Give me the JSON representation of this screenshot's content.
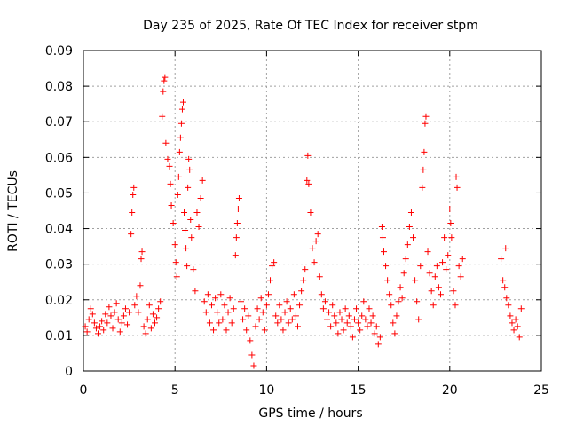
{
  "chart_data": {
    "type": "scatter",
    "title": "Day 235 of 2025, Rate Of TEC Index for receiver stpm",
    "xlabel": "GPS time / hours",
    "ylabel": "ROTI / TECUs",
    "xlim": [
      0,
      25
    ],
    "ylim": [
      0,
      0.09
    ],
    "x_ticks": [
      "0",
      "5",
      "10",
      "15",
      "20",
      "25"
    ],
    "y_ticks": [
      "0",
      "0.01",
      "0.02",
      "0.03",
      "0.04",
      "0.05",
      "0.06",
      "0.07",
      "0.08",
      "0.09"
    ],
    "grid": true,
    "marker": "plus",
    "colors": {
      "series": "#ff0000",
      "grid": "#a0a0a0"
    },
    "series": [
      {
        "points": [
          [
            0.1,
            0.0125
          ],
          [
            0.2,
            0.011
          ],
          [
            0.3,
            0.0145
          ],
          [
            0.4,
            0.0175
          ],
          [
            0.5,
            0.016
          ],
          [
            0.6,
            0.0135
          ],
          [
            0.7,
            0.012
          ],
          [
            0.8,
            0.0105
          ],
          [
            0.9,
            0.0125
          ],
          [
            1.0,
            0.014
          ],
          [
            1.1,
            0.0115
          ],
          [
            1.2,
            0.016
          ],
          [
            1.3,
            0.0135
          ],
          [
            1.4,
            0.018
          ],
          [
            1.5,
            0.0155
          ],
          [
            1.6,
            0.012
          ],
          [
            1.7,
            0.0165
          ],
          [
            1.8,
            0.019
          ],
          [
            1.9,
            0.0145
          ],
          [
            2.0,
            0.011
          ],
          [
            2.1,
            0.0135
          ],
          [
            2.2,
            0.0155
          ],
          [
            2.3,
            0.0175
          ],
          [
            2.4,
            0.013
          ],
          [
            2.5,
            0.0165
          ],
          [
            2.6,
            0.0385
          ],
          [
            2.65,
            0.0445
          ],
          [
            2.7,
            0.0495
          ],
          [
            2.75,
            0.0515
          ],
          [
            2.8,
            0.0185
          ],
          [
            2.9,
            0.021
          ],
          [
            3.0,
            0.0165
          ],
          [
            3.1,
            0.024
          ],
          [
            3.15,
            0.0315
          ],
          [
            3.2,
            0.0335
          ],
          [
            3.3,
            0.0125
          ],
          [
            3.4,
            0.0105
          ],
          [
            3.5,
            0.0145
          ],
          [
            3.6,
            0.0185
          ],
          [
            3.7,
            0.012
          ],
          [
            3.8,
            0.016
          ],
          [
            3.9,
            0.0135
          ],
          [
            4.0,
            0.015
          ],
          [
            4.1,
            0.0175
          ],
          [
            4.2,
            0.0195
          ],
          [
            4.3,
            0.0715
          ],
          [
            4.35,
            0.0785
          ],
          [
            4.4,
            0.0815
          ],
          [
            4.45,
            0.0825
          ],
          [
            4.5,
            0.064
          ],
          [
            4.6,
            0.0595
          ],
          [
            4.7,
            0.0575
          ],
          [
            4.75,
            0.0525
          ],
          [
            4.8,
            0.0465
          ],
          [
            4.9,
            0.0415
          ],
          [
            5.0,
            0.0355
          ],
          [
            5.05,
            0.0305
          ],
          [
            5.1,
            0.0265
          ],
          [
            5.15,
            0.0495
          ],
          [
            5.2,
            0.0545
          ],
          [
            5.25,
            0.0615
          ],
          [
            5.3,
            0.0655
          ],
          [
            5.35,
            0.0695
          ],
          [
            5.4,
            0.0735
          ],
          [
            5.45,
            0.0755
          ],
          [
            5.5,
            0.0445
          ],
          [
            5.55,
            0.0395
          ],
          [
            5.6,
            0.0345
          ],
          [
            5.65,
            0.0295
          ],
          [
            5.7,
            0.0515
          ],
          [
            5.75,
            0.0595
          ],
          [
            5.8,
            0.0565
          ],
          [
            5.85,
            0.0425
          ],
          [
            5.9,
            0.0375
          ],
          [
            6.0,
            0.0285
          ],
          [
            6.1,
            0.0225
          ],
          [
            6.2,
            0.0445
          ],
          [
            6.3,
            0.0405
          ],
          [
            6.4,
            0.0485
          ],
          [
            6.5,
            0.0535
          ],
          [
            6.6,
            0.0195
          ],
          [
            6.7,
            0.0165
          ],
          [
            6.8,
            0.0215
          ],
          [
            6.9,
            0.0135
          ],
          [
            7.0,
            0.0185
          ],
          [
            7.1,
            0.0115
          ],
          [
            7.2,
            0.0205
          ],
          [
            7.3,
            0.0165
          ],
          [
            7.4,
            0.0135
          ],
          [
            7.5,
            0.0215
          ],
          [
            7.6,
            0.0145
          ],
          [
            7.7,
            0.0185
          ],
          [
            7.8,
            0.0115
          ],
          [
            7.9,
            0.0165
          ],
          [
            8.0,
            0.0205
          ],
          [
            8.1,
            0.0135
          ],
          [
            8.2,
            0.0175
          ],
          [
            8.3,
            0.0325
          ],
          [
            8.35,
            0.0375
          ],
          [
            8.4,
            0.0415
          ],
          [
            8.45,
            0.0455
          ],
          [
            8.5,
            0.0485
          ],
          [
            8.6,
            0.0195
          ],
          [
            8.7,
            0.0145
          ],
          [
            8.8,
            0.0175
          ],
          [
            8.9,
            0.0115
          ],
          [
            9.0,
            0.0155
          ],
          [
            9.1,
            0.0085
          ],
          [
            9.2,
            0.0045
          ],
          [
            9.3,
            0.0015
          ],
          [
            9.4,
            0.0125
          ],
          [
            9.5,
            0.0175
          ],
          [
            9.6,
            0.0145
          ],
          [
            9.7,
            0.0205
          ],
          [
            9.8,
            0.0165
          ],
          [
            9.9,
            0.0115
          ],
          [
            10.0,
            0.0185
          ],
          [
            10.1,
            0.0215
          ],
          [
            10.2,
            0.0255
          ],
          [
            10.3,
            0.0295
          ],
          [
            10.4,
            0.0305
          ],
          [
            10.5,
            0.0155
          ],
          [
            10.6,
            0.0135
          ],
          [
            10.7,
            0.0185
          ],
          [
            10.8,
            0.0145
          ],
          [
            10.9,
            0.0115
          ],
          [
            11.0,
            0.0165
          ],
          [
            11.1,
            0.0195
          ],
          [
            11.2,
            0.0135
          ],
          [
            11.3,
            0.0175
          ],
          [
            11.4,
            0.0145
          ],
          [
            11.5,
            0.0215
          ],
          [
            11.6,
            0.0155
          ],
          [
            11.7,
            0.0125
          ],
          [
            11.8,
            0.0185
          ],
          [
            11.9,
            0.0225
          ],
          [
            12.0,
            0.0255
          ],
          [
            12.1,
            0.0285
          ],
          [
            12.2,
            0.0535
          ],
          [
            12.25,
            0.0605
          ],
          [
            12.3,
            0.0525
          ],
          [
            12.4,
            0.0445
          ],
          [
            12.5,
            0.0345
          ],
          [
            12.6,
            0.0305
          ],
          [
            12.7,
            0.0365
          ],
          [
            12.8,
            0.0385
          ],
          [
            12.9,
            0.0265
          ],
          [
            13.0,
            0.0215
          ],
          [
            13.1,
            0.0175
          ],
          [
            13.2,
            0.0195
          ],
          [
            13.3,
            0.0145
          ],
          [
            13.4,
            0.0165
          ],
          [
            13.5,
            0.0125
          ],
          [
            13.6,
            0.0185
          ],
          [
            13.7,
            0.0155
          ],
          [
            13.8,
            0.0135
          ],
          [
            13.9,
            0.0105
          ],
          [
            14.0,
            0.0165
          ],
          [
            14.1,
            0.0145
          ],
          [
            14.2,
            0.0115
          ],
          [
            14.3,
            0.0175
          ],
          [
            14.4,
            0.0135
          ],
          [
            14.5,
            0.0155
          ],
          [
            14.6,
            0.0125
          ],
          [
            14.7,
            0.0095
          ],
          [
            14.8,
            0.0145
          ],
          [
            14.9,
            0.0175
          ],
          [
            15.0,
            0.0135
          ],
          [
            15.1,
            0.0115
          ],
          [
            15.2,
            0.0155
          ],
          [
            15.3,
            0.0195
          ],
          [
            15.4,
            0.0145
          ],
          [
            15.5,
            0.0125
          ],
          [
            15.6,
            0.0175
          ],
          [
            15.7,
            0.0135
          ],
          [
            15.8,
            0.0155
          ],
          [
            15.9,
            0.0105
          ],
          [
            16.0,
            0.0125
          ],
          [
            16.1,
            0.0075
          ],
          [
            16.2,
            0.0095
          ],
          [
            16.3,
            0.0405
          ],
          [
            16.35,
            0.0375
          ],
          [
            16.4,
            0.0335
          ],
          [
            16.5,
            0.0295
          ],
          [
            16.6,
            0.0255
          ],
          [
            16.7,
            0.0215
          ],
          [
            16.8,
            0.0185
          ],
          [
            16.9,
            0.0135
          ],
          [
            17.0,
            0.0105
          ],
          [
            17.1,
            0.0155
          ],
          [
            17.2,
            0.0195
          ],
          [
            17.3,
            0.0235
          ],
          [
            17.4,
            0.0205
          ],
          [
            17.5,
            0.0275
          ],
          [
            17.6,
            0.0315
          ],
          [
            17.7,
            0.0355
          ],
          [
            17.8,
            0.0405
          ],
          [
            17.9,
            0.0445
          ],
          [
            18.0,
            0.0375
          ],
          [
            18.1,
            0.0255
          ],
          [
            18.2,
            0.0195
          ],
          [
            18.3,
            0.0145
          ],
          [
            18.4,
            0.0295
          ],
          [
            18.5,
            0.0515
          ],
          [
            18.55,
            0.0565
          ],
          [
            18.6,
            0.0615
          ],
          [
            18.65,
            0.0695
          ],
          [
            18.7,
            0.0715
          ],
          [
            18.8,
            0.0335
          ],
          [
            18.9,
            0.0275
          ],
          [
            19.0,
            0.0225
          ],
          [
            19.1,
            0.0185
          ],
          [
            19.2,
            0.0265
          ],
          [
            19.3,
            0.0295
          ],
          [
            19.4,
            0.0235
          ],
          [
            19.5,
            0.0215
          ],
          [
            19.6,
            0.0305
          ],
          [
            19.7,
            0.0375
          ],
          [
            19.8,
            0.0285
          ],
          [
            19.9,
            0.0325
          ],
          [
            20.0,
            0.0455
          ],
          [
            20.05,
            0.0415
          ],
          [
            20.1,
            0.0375
          ],
          [
            20.2,
            0.0225
          ],
          [
            20.3,
            0.0185
          ],
          [
            20.35,
            0.0545
          ],
          [
            20.4,
            0.0515
          ],
          [
            20.5,
            0.0295
          ],
          [
            20.6,
            0.0265
          ],
          [
            20.7,
            0.0315
          ],
          [
            22.8,
            0.0315
          ],
          [
            22.9,
            0.0255
          ],
          [
            23.0,
            0.0235
          ],
          [
            23.05,
            0.0345
          ],
          [
            23.1,
            0.0205
          ],
          [
            23.2,
            0.0185
          ],
          [
            23.3,
            0.0155
          ],
          [
            23.4,
            0.0135
          ],
          [
            23.5,
            0.0115
          ],
          [
            23.6,
            0.0145
          ],
          [
            23.7,
            0.0125
          ],
          [
            23.8,
            0.0095
          ],
          [
            23.9,
            0.0175
          ]
        ]
      }
    ]
  }
}
